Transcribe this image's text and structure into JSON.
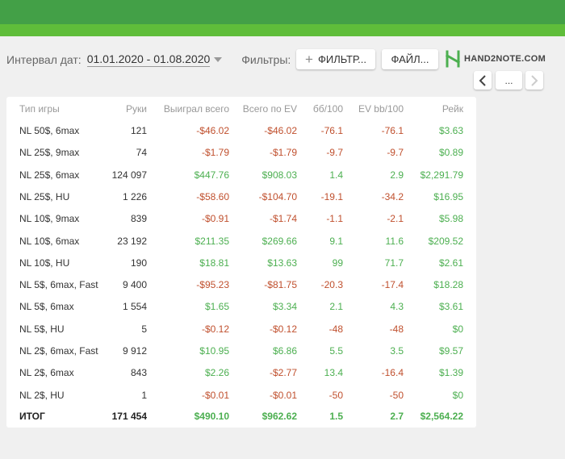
{
  "filters": {
    "date_label": "Интервал дат:",
    "date_value": "01.01.2020 - 01.08.2020",
    "filters_label": "Фильтры:",
    "filter_button": "ФИЛЬТР...",
    "file_button": "ФАЙЛ...",
    "logo_text": "HAND2NOTE.COM",
    "more_button": "..."
  },
  "table": {
    "headers": [
      "Тип игры",
      "Руки",
      "Выиграл всего",
      "Всего по EV",
      "бб/100",
      "EV bb/100",
      "Рейк"
    ],
    "rows": [
      {
        "game": "NL 50$, 6max",
        "hands": "121",
        "won": "-$46.02",
        "ev": "-$46.02",
        "bb": "-76.1",
        "evbb": "-76.1",
        "rake": "$3.63"
      },
      {
        "game": "NL 25$, 9max",
        "hands": "74",
        "won": "-$1.79",
        "ev": "-$1.79",
        "bb": "-9.7",
        "evbb": "-9.7",
        "rake": "$0.89"
      },
      {
        "game": "NL 25$, 6max",
        "hands": "124 097",
        "won": "$447.76",
        "ev": "$908.03",
        "bb": "1.4",
        "evbb": "2.9",
        "rake": "$2,291.79"
      },
      {
        "game": "NL 25$, HU",
        "hands": "1 226",
        "won": "-$58.60",
        "ev": "-$104.70",
        "bb": "-19.1",
        "evbb": "-34.2",
        "rake": "$16.95"
      },
      {
        "game": "NL 10$, 9max",
        "hands": "839",
        "won": "-$0.91",
        "ev": "-$1.74",
        "bb": "-1.1",
        "evbb": "-2.1",
        "rake": "$5.98"
      },
      {
        "game": "NL 10$, 6max",
        "hands": "23 192",
        "won": "$211.35",
        "ev": "$269.66",
        "bb": "9.1",
        "evbb": "11.6",
        "rake": "$209.52"
      },
      {
        "game": "NL 10$, HU",
        "hands": "190",
        "won": "$18.81",
        "ev": "$13.63",
        "bb": "99",
        "evbb": "71.7",
        "rake": "$2.61"
      },
      {
        "game": "NL 5$, 6max, Fast",
        "hands": "9 400",
        "won": "-$95.23",
        "ev": "-$81.75",
        "bb": "-20.3",
        "evbb": "-17.4",
        "rake": "$18.28"
      },
      {
        "game": "NL 5$, 6max",
        "hands": "1 554",
        "won": "$1.65",
        "ev": "$3.34",
        "bb": "2.1",
        "evbb": "4.3",
        "rake": "$3.61"
      },
      {
        "game": "NL 5$, HU",
        "hands": "5",
        "won": "-$0.12",
        "ev": "-$0.12",
        "bb": "-48",
        "evbb": "-48",
        "rake": "$0"
      },
      {
        "game": "NL 2$, 6max, Fast",
        "hands": "9 912",
        "won": "$10.95",
        "ev": "$6.86",
        "bb": "5.5",
        "evbb": "3.5",
        "rake": "$9.57"
      },
      {
        "game": "NL 2$, 6max",
        "hands": "843",
        "won": "$2.26",
        "ev": "-$2.77",
        "bb": "13.4",
        "evbb": "-16.4",
        "rake": "$1.39"
      },
      {
        "game": "NL 2$, HU",
        "hands": "1",
        "won": "-$0.01",
        "ev": "-$0.01",
        "bb": "-50",
        "evbb": "-50",
        "rake": "$0"
      }
    ],
    "total": {
      "game": "ИТОГ",
      "hands": "171 454",
      "won": "$490.10",
      "ev": "$962.62",
      "bb": "1.5",
      "evbb": "2.7",
      "rake": "$2,564.22"
    }
  },
  "colors": {
    "positive": "#4caf50",
    "negative": "#c0502e",
    "header_green": "#43a047",
    "accent_green": "#5fbd3a"
  },
  "icons": {
    "plus": "plus-icon",
    "logo": "hand2note-logo-icon",
    "prev": "chevron-left-icon",
    "next": "chevron-right-icon",
    "caret": "caret-down-icon"
  }
}
